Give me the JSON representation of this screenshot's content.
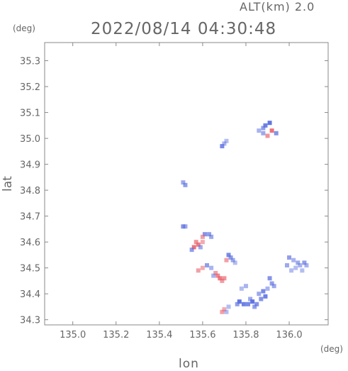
{
  "header": {
    "alt_label": "ALT(km) 2.0",
    "datetime": "2022/08/14 04:30:48",
    "y_unit": "(deg)",
    "x_unit": "(deg)"
  },
  "chart_data": {
    "type": "heatmap",
    "title": "2022/08/14 04:30:48",
    "subtitle": "ALT(km) 2.0",
    "xlabel": "lon",
    "ylabel": "lat",
    "x_unit": "(deg)",
    "y_unit": "(deg)",
    "xlim": [
      134.87,
      136.18
    ],
    "ylim": [
      34.28,
      35.37
    ],
    "x_ticks": [
      135.0,
      135.2,
      135.4,
      135.6,
      135.8,
      136.0
    ],
    "x_tick_labels": [
      "135.0",
      "135.2",
      "135.4",
      "135.6",
      "135.8",
      "136.0"
    ],
    "y_ticks": [
      34.3,
      34.4,
      34.5,
      34.6,
      34.7,
      34.8,
      34.9,
      35.0,
      35.1,
      35.2,
      35.3
    ],
    "y_tick_labels": [
      "34.3",
      "34.4",
      "34.5",
      "34.6",
      "34.7",
      "34.8",
      "34.9",
      "35.0",
      "35.1",
      "35.2",
      "35.3"
    ],
    "grid": false,
    "colors": {
      "negative": "#5a6fe0",
      "positive": "#e8606a",
      "axis": "#888888",
      "text": "#666666"
    },
    "cells": [
      [
        135.89,
        35.05,
        -0.9
      ],
      [
        135.91,
        35.06,
        -1.0
      ],
      [
        135.88,
        35.04,
        -0.6
      ],
      [
        135.86,
        35.03,
        -0.4
      ],
      [
        135.92,
        35.03,
        0.9
      ],
      [
        135.94,
        35.02,
        -0.7
      ],
      [
        135.9,
        35.01,
        0.6
      ],
      [
        135.88,
        35.02,
        -0.5
      ],
      [
        135.69,
        34.97,
        -0.8
      ],
      [
        135.7,
        34.98,
        -0.4
      ],
      [
        135.71,
        34.99,
        -0.3
      ],
      [
        135.51,
        34.83,
        -0.5
      ],
      [
        135.52,
        34.82,
        -0.6
      ],
      [
        135.51,
        34.66,
        -0.7
      ],
      [
        135.52,
        34.66,
        -0.5
      ],
      [
        135.61,
        34.63,
        -0.7
      ],
      [
        135.63,
        34.63,
        -0.6
      ],
      [
        135.64,
        34.62,
        -0.5
      ],
      [
        135.6,
        34.62,
        0.5
      ],
      [
        135.57,
        34.6,
        0.6
      ],
      [
        135.58,
        34.59,
        0.8
      ],
      [
        135.56,
        34.58,
        0.9
      ],
      [
        135.55,
        34.57,
        -0.6
      ],
      [
        135.59,
        34.58,
        -0.5
      ],
      [
        135.6,
        34.6,
        0.4
      ],
      [
        135.72,
        34.55,
        -0.8
      ],
      [
        135.73,
        34.54,
        -0.6
      ],
      [
        135.74,
        34.53,
        -0.5
      ],
      [
        135.75,
        34.52,
        -0.3
      ],
      [
        135.71,
        34.53,
        0.5
      ],
      [
        136.0,
        34.54,
        -0.6
      ],
      [
        136.02,
        34.53,
        -0.4
      ],
      [
        136.04,
        34.52,
        -0.5
      ],
      [
        136.03,
        34.5,
        -0.3
      ],
      [
        136.05,
        34.51,
        -0.4
      ],
      [
        136.07,
        34.52,
        -0.6
      ],
      [
        136.01,
        34.49,
        -0.3
      ],
      [
        136.08,
        34.51,
        -0.4
      ],
      [
        136.06,
        34.49,
        -0.3
      ],
      [
        135.99,
        34.51,
        -0.5
      ],
      [
        135.62,
        34.51,
        -0.6
      ],
      [
        135.64,
        34.5,
        -0.4
      ],
      [
        135.58,
        34.49,
        0.5
      ],
      [
        135.6,
        34.5,
        0.4
      ],
      [
        135.66,
        34.48,
        0.5
      ],
      [
        135.67,
        34.47,
        0.7
      ],
      [
        135.68,
        34.46,
        0.8
      ],
      [
        135.7,
        34.46,
        0.6
      ],
      [
        135.65,
        34.47,
        -0.4
      ],
      [
        135.69,
        34.45,
        0.5
      ],
      [
        135.91,
        34.46,
        -0.7
      ],
      [
        135.92,
        34.44,
        -0.6
      ],
      [
        135.93,
        34.43,
        -0.5
      ],
      [
        135.88,
        34.41,
        -0.8
      ],
      [
        135.89,
        34.39,
        -0.9
      ],
      [
        135.87,
        34.38,
        -0.7
      ],
      [
        135.9,
        34.42,
        -0.4
      ],
      [
        135.86,
        34.4,
        -0.5
      ],
      [
        135.8,
        34.43,
        -0.4
      ],
      [
        135.78,
        34.42,
        -0.3
      ],
      [
        135.77,
        34.37,
        -1.0
      ],
      [
        135.79,
        34.36,
        -0.9
      ],
      [
        135.81,
        34.36,
        -0.8
      ],
      [
        135.83,
        34.37,
        -1.0
      ],
      [
        135.85,
        34.36,
        -0.7
      ],
      [
        135.76,
        34.36,
        -0.6
      ],
      [
        135.82,
        34.38,
        -0.5
      ],
      [
        135.84,
        34.35,
        -0.6
      ],
      [
        135.7,
        34.34,
        0.4
      ],
      [
        135.69,
        34.33,
        0.5
      ],
      [
        135.71,
        34.33,
        -0.3
      ],
      [
        135.72,
        34.35,
        -0.3
      ]
    ]
  }
}
